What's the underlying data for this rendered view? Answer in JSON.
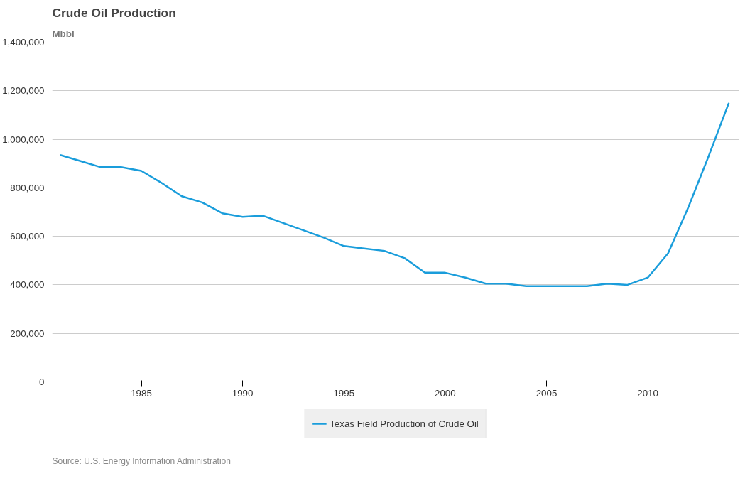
{
  "chart_data": {
    "type": "line",
    "title": "Crude Oil Production",
    "ylabel": "Mbbl",
    "x": [
      1981,
      1982,
      1983,
      1984,
      1985,
      1986,
      1987,
      1988,
      1989,
      1990,
      1991,
      1992,
      1993,
      1994,
      1995,
      1996,
      1997,
      1998,
      1999,
      2000,
      2001,
      2002,
      2003,
      2004,
      2005,
      2006,
      2007,
      2008,
      2009,
      2010,
      2011,
      2012,
      2013,
      2014
    ],
    "series": [
      {
        "name": "Texas Field Production of Crude Oil",
        "color": "#1a9ddb",
        "values": [
          935000,
          910000,
          885000,
          885000,
          870000,
          820000,
          765000,
          740000,
          695000,
          680000,
          685000,
          655000,
          625000,
          595000,
          560000,
          550000,
          540000,
          510000,
          450000,
          450000,
          430000,
          405000,
          405000,
          395000,
          395000,
          395000,
          395000,
          405000,
          400000,
          430000,
          530000,
          720000,
          930000,
          1150000
        ]
      }
    ],
    "xlim": [
      1980.6,
      2014.5
    ],
    "xticks": [
      1985,
      1990,
      1995,
      2000,
      2005,
      2010
    ],
    "ylim": [
      0,
      1400000
    ],
    "yticks": [
      0,
      {
        "value": 200000,
        "label": "200,000"
      },
      {
        "value": 400000,
        "label": "400,000"
      },
      {
        "value": 600000,
        "label": "600,000"
      },
      {
        "value": 800000,
        "label": "800,000"
      },
      {
        "value": 1000000,
        "label": "1,000,000"
      },
      {
        "value": 1200000,
        "label": "1,200,000"
      },
      {
        "value": 1400000,
        "label": "1,400,000"
      }
    ],
    "grid": "y",
    "legend": "bottom",
    "marker": "none",
    "line_style": "solid",
    "annotations": [
      "Source: U.S. Energy Information Administration"
    ]
  }
}
